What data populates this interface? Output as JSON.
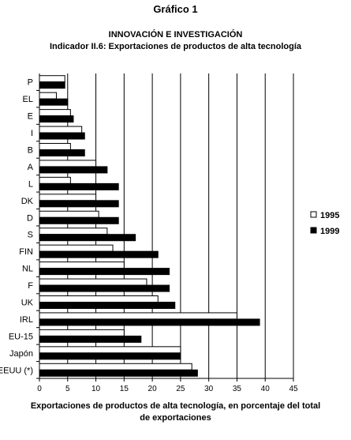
{
  "figure_title": "Gráfico 1",
  "chart_data": {
    "type": "bar",
    "orientation": "horizontal",
    "title": "INNOVACIÓN E INVESTIGACIÓN",
    "subtitle": "Indicador II.6: Exportaciones de productos de alta tecnología",
    "xlabel_line1": "Exportaciones de productos de alta tecnología, en porcentaje del total",
    "xlabel_line2": "de exportaciones",
    "categories": [
      "P",
      "EL",
      "E",
      "I",
      "B",
      "A",
      "L",
      "DK",
      "D",
      "S",
      "FIN",
      "NL",
      "F",
      "UK",
      "IRL",
      "EU-15",
      "Japón",
      "EEUU (*)"
    ],
    "series": [
      {
        "name": "1995",
        "color": "#ffffff",
        "values": [
          4.5,
          3,
          5.5,
          7.5,
          5.5,
          10,
          5.5,
          10,
          10.5,
          12,
          13,
          15,
          19,
          21,
          35,
          15,
          25,
          27
        ]
      },
      {
        "name": "1999",
        "color": "#000000",
        "values": [
          4.5,
          5,
          6,
          8,
          8,
          12,
          14,
          14,
          14,
          17,
          21,
          23,
          23,
          24,
          39,
          18,
          25,
          28
        ]
      }
    ],
    "xlim": [
      0,
      45
    ],
    "xticks": [
      "0",
      "5",
      "10",
      "15",
      "20",
      "25",
      "30",
      "35",
      "40",
      "45"
    ],
    "grid": true,
    "legend_position": "right"
  }
}
